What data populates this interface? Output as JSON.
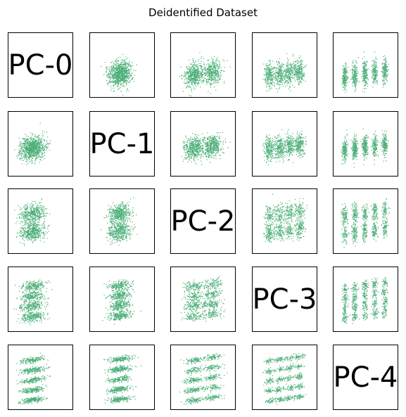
{
  "chart_data": {
    "type": "scatter",
    "title": "Deidentified Dataset",
    "layout": "5x5 pair-plot matrix",
    "point_color": "#4caf78",
    "grid": false,
    "diagonal_labels": [
      "PC-0",
      "PC-1",
      "PC-2",
      "PC-3",
      "PC-4"
    ],
    "components": [
      "PC-0",
      "PC-1",
      "PC-2",
      "PC-3",
      "PC-4"
    ],
    "axis_ticks_shown": false,
    "legend": "none"
  }
}
